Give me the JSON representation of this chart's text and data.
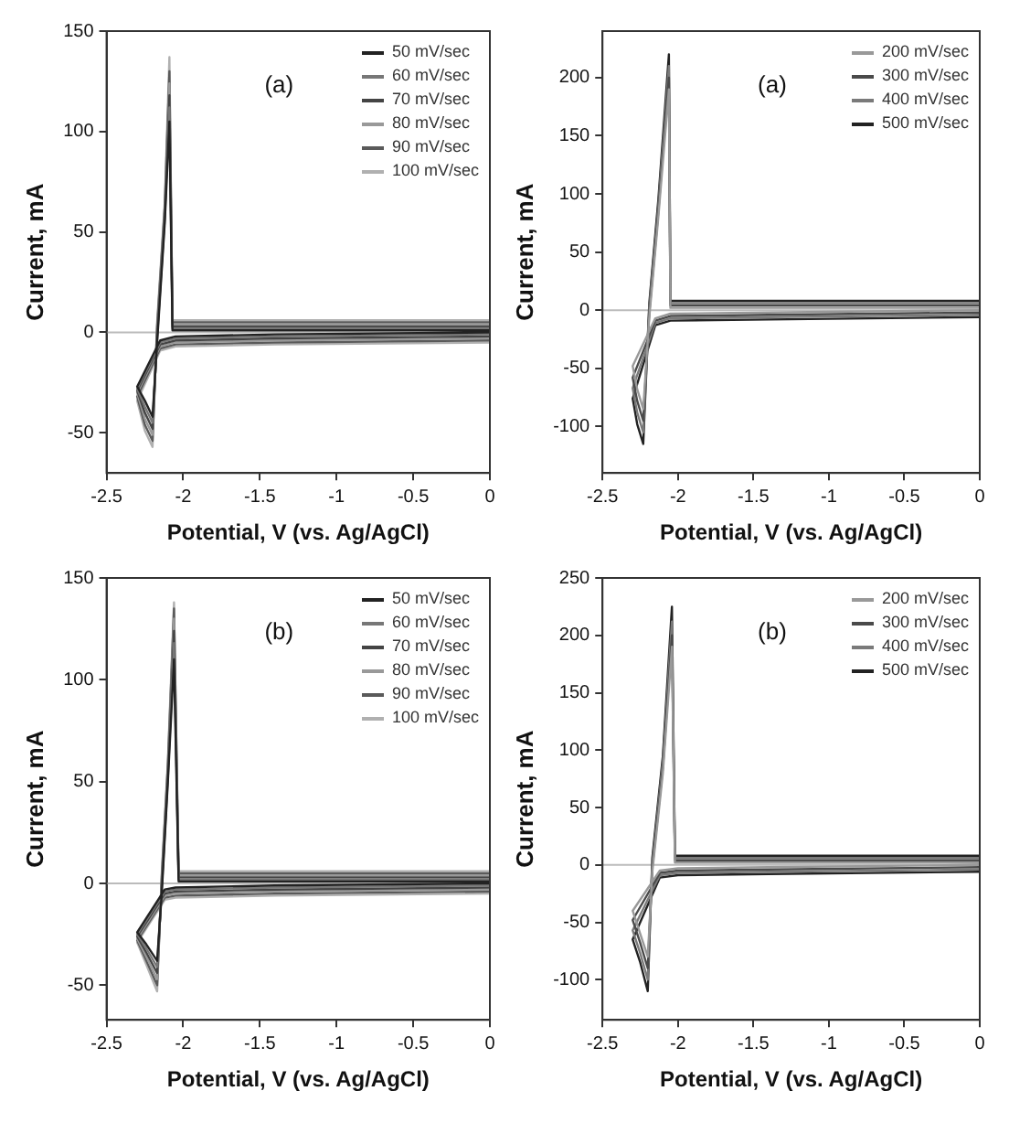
{
  "chart_data": [
    {
      "type": "line",
      "annotations": [
        "(a)"
      ],
      "xlabel": "Potential, V (vs. Ag/AgCl)",
      "ylabel": "Current, mA",
      "xlim": [
        -2.5,
        0
      ],
      "xticks": [
        -2.5,
        -2,
        -1.5,
        -1,
        -0.5,
        0
      ],
      "ylim": [
        -70,
        150
      ],
      "yticks": [
        -50,
        0,
        50,
        100,
        150
      ],
      "legend": "top right",
      "marker": "none",
      "ref_lines": [
        {
          "axis": "y",
          "value": 0,
          "color": "#bbbbbb"
        }
      ],
      "series": [
        {
          "name": "50 mV/sec",
          "color": "#222222",
          "x": [
            0,
            -1.4,
            -2.05,
            -2.15,
            -2.3,
            -2.25,
            -2.2,
            -2.17,
            -2.12,
            -2.09,
            -2.07,
            -1.5,
            0
          ],
          "values": [
            0,
            -1,
            -2,
            -4,
            -27,
            -34,
            -42,
            -5,
            55,
            105,
            1,
            1,
            1
          ]
        },
        {
          "name": "60 mV/sec",
          "color": "#777777",
          "x": [
            0,
            -1.4,
            -2.05,
            -2.15,
            -2.3,
            -2.25,
            -2.2,
            -2.17,
            -2.12,
            -2.09,
            -2.07,
            -1.5,
            0
          ],
          "values": [
            -1,
            -2,
            -3,
            -5,
            -28,
            -37,
            -45,
            -3,
            57,
            112,
            2,
            2,
            2
          ]
        },
        {
          "name": "70 mV/sec",
          "color": "#444444",
          "x": [
            0,
            -1.4,
            -2.05,
            -2.15,
            -2.3,
            -2.25,
            -2.2,
            -2.17,
            -2.12,
            -2.09,
            -2.07,
            -1.5,
            0
          ],
          "values": [
            -2,
            -3,
            -4,
            -6,
            -29,
            -40,
            -48,
            -1,
            59,
            118,
            3,
            3,
            3
          ]
        },
        {
          "name": "80 mV/sec",
          "color": "#999999",
          "x": [
            0,
            -1.4,
            -2.05,
            -2.15,
            -2.3,
            -2.25,
            -2.2,
            -2.17,
            -2.12,
            -2.09,
            -2.07,
            -1.5,
            0
          ],
          "values": [
            -3,
            -4,
            -5,
            -7,
            -30,
            -43,
            -51,
            1,
            61,
            124,
            4,
            4,
            4
          ]
        },
        {
          "name": "90 mV/sec",
          "color": "#5a5a5a",
          "x": [
            0,
            -1.4,
            -2.05,
            -2.15,
            -2.3,
            -2.25,
            -2.2,
            -2.17,
            -2.12,
            -2.09,
            -2.07,
            -1.5,
            0
          ],
          "values": [
            -4,
            -5,
            -6,
            -8,
            -32,
            -46,
            -54,
            3,
            63,
            130,
            5,
            5,
            5
          ]
        },
        {
          "name": "100 mV/sec",
          "color": "#b0b0b0",
          "x": [
            0,
            -1.4,
            -2.05,
            -2.15,
            -2.3,
            -2.25,
            -2.2,
            -2.17,
            -2.12,
            -2.09,
            -2.07,
            -1.5,
            0
          ],
          "values": [
            -5,
            -6,
            -7,
            -9,
            -34,
            -49,
            -57,
            5,
            65,
            137,
            6,
            6,
            6
          ]
        }
      ]
    },
    {
      "type": "line",
      "annotations": [
        "(a)"
      ],
      "xlabel": "Potential, V (vs. Ag/AgCl)",
      "ylabel": "Current, mA",
      "xlim": [
        -2.5,
        0
      ],
      "xticks": [
        -2.5,
        -2,
        -1.5,
        -1,
        -0.5,
        0
      ],
      "ylim": [
        -140,
        240
      ],
      "yticks": [
        -100,
        -50,
        0,
        50,
        100,
        150,
        200
      ],
      "legend": "top right",
      "marker": "none",
      "ref_lines": [
        {
          "axis": "y",
          "value": 0,
          "color": "#bbbbbb"
        }
      ],
      "series": [
        {
          "name": "200 mV/sec",
          "color": "#999999",
          "x": [
            0,
            -1.4,
            -2.05,
            -2.15,
            -2.3,
            -2.27,
            -2.23,
            -2.19,
            -2.13,
            -2.06,
            -2.05,
            -1.5,
            0
          ],
          "values": [
            0,
            -2,
            -3,
            -7,
            -48,
            -68,
            -85,
            -6,
            80,
            190,
            2,
            2,
            2
          ]
        },
        {
          "name": "300 mV/sec",
          "color": "#4a4a4a",
          "x": [
            0,
            -1.4,
            -2.05,
            -2.15,
            -2.3,
            -2.27,
            -2.23,
            -2.19,
            -2.13,
            -2.06,
            -2.05,
            -1.5,
            0
          ],
          "values": [
            -2,
            -4,
            -5,
            -9,
            -58,
            -78,
            -95,
            -2,
            85,
            200,
            4,
            4,
            4
          ]
        },
        {
          "name": "400 mV/sec",
          "color": "#7a7a7a",
          "x": [
            0,
            -1.4,
            -2.05,
            -2.15,
            -2.3,
            -2.27,
            -2.23,
            -2.19,
            -2.13,
            -2.06,
            -2.05,
            -1.5,
            0
          ],
          "values": [
            -4,
            -6,
            -7,
            -11,
            -67,
            -88,
            -105,
            2,
            90,
            210,
            6,
            6,
            6
          ]
        },
        {
          "name": "500 mV/sec",
          "color": "#222222",
          "x": [
            0,
            -1.4,
            -2.05,
            -2.15,
            -2.3,
            -2.27,
            -2.23,
            -2.19,
            -2.13,
            -2.06,
            -2.05,
            -1.5,
            0
          ],
          "values": [
            -6,
            -8,
            -9,
            -13,
            -76,
            -98,
            -115,
            6,
            95,
            220,
            8,
            8,
            8
          ]
        }
      ]
    },
    {
      "type": "line",
      "annotations": [
        "(b)"
      ],
      "xlabel": "Potential, V (vs. Ag/AgCl)",
      "ylabel": "Current, mA",
      "xlim": [
        -2.5,
        0
      ],
      "xticks": [
        -2.5,
        -2,
        -1.5,
        -1,
        -0.5,
        0
      ],
      "ylim": [
        -67,
        150
      ],
      "yticks": [
        -50,
        0,
        50,
        100,
        150
      ],
      "legend": "top right",
      "marker": "none",
      "ref_lines": [
        {
          "axis": "y",
          "value": 0,
          "color": "#bbbbbb"
        }
      ],
      "series": [
        {
          "name": "50 mV/sec",
          "color": "#222222",
          "x": [
            0,
            -1.4,
            -2.05,
            -2.12,
            -2.3,
            -2.24,
            -2.17,
            -2.14,
            -2.1,
            -2.06,
            -2.03,
            -1.5,
            0
          ],
          "values": [
            0,
            -1,
            -2,
            -3,
            -24,
            -30,
            -38,
            -5,
            50,
            110,
            1,
            1,
            1
          ]
        },
        {
          "name": "60 mV/sec",
          "color": "#777777",
          "x": [
            0,
            -1.4,
            -2.05,
            -2.12,
            -2.3,
            -2.24,
            -2.17,
            -2.14,
            -2.1,
            -2.06,
            -2.03,
            -1.5,
            0
          ],
          "values": [
            -1,
            -2,
            -3,
            -4,
            -25,
            -32,
            -41,
            -3,
            52,
            118,
            2,
            2,
            2
          ]
        },
        {
          "name": "70 mV/sec",
          "color": "#444444",
          "x": [
            0,
            -1.4,
            -2.05,
            -2.12,
            -2.3,
            -2.24,
            -2.17,
            -2.14,
            -2.1,
            -2.06,
            -2.03,
            -1.5,
            0
          ],
          "values": [
            -2,
            -3,
            -4,
            -5,
            -26,
            -34,
            -44,
            -1,
            54,
            124,
            3,
            3,
            3
          ]
        },
        {
          "name": "80 mV/sec",
          "color": "#999999",
          "x": [
            0,
            -1.4,
            -2.05,
            -2.12,
            -2.3,
            -2.24,
            -2.17,
            -2.14,
            -2.1,
            -2.06,
            -2.03,
            -1.5,
            0
          ],
          "values": [
            -3,
            -4,
            -5,
            -6,
            -27,
            -36,
            -47,
            1,
            56,
            130,
            4,
            4,
            4
          ]
        },
        {
          "name": "90 mV/sec",
          "color": "#5a5a5a",
          "x": [
            0,
            -1.4,
            -2.05,
            -2.12,
            -2.3,
            -2.24,
            -2.17,
            -2.14,
            -2.1,
            -2.06,
            -2.03,
            -1.5,
            0
          ],
          "values": [
            -4,
            -5,
            -6,
            -7,
            -28,
            -38,
            -50,
            3,
            58,
            135,
            5,
            5,
            5
          ]
        },
        {
          "name": "100 mV/sec",
          "color": "#b0b0b0",
          "x": [
            0,
            -1.4,
            -2.05,
            -2.12,
            -2.3,
            -2.24,
            -2.17,
            -2.14,
            -2.1,
            -2.06,
            -2.03,
            -1.5,
            0
          ],
          "values": [
            -5,
            -6,
            -7,
            -8,
            -29,
            -40,
            -53,
            5,
            60,
            138,
            6,
            6,
            6
          ]
        }
      ]
    },
    {
      "type": "line",
      "annotations": [
        "(b)"
      ],
      "xlabel": "Potential, V (vs. Ag/AgCl)",
      "ylabel": "Current, mA",
      "xlim": [
        -2.5,
        0
      ],
      "xticks": [
        -2.5,
        -2,
        -1.5,
        -1,
        -0.5,
        0
      ],
      "ylim": [
        -135,
        250
      ],
      "yticks": [
        -100,
        -50,
        0,
        50,
        100,
        150,
        200,
        250
      ],
      "legend": "top right",
      "marker": "none",
      "ref_lines": [
        {
          "axis": "y",
          "value": 0,
          "color": "#bbbbbb"
        }
      ],
      "series": [
        {
          "name": "200 mV/sec",
          "color": "#999999",
          "x": [
            0,
            -1.4,
            -2.0,
            -2.12,
            -2.3,
            -2.25,
            -2.2,
            -2.17,
            -2.1,
            -2.04,
            -2.02,
            -1.5,
            0
          ],
          "values": [
            0,
            -2,
            -3,
            -5,
            -40,
            -60,
            -80,
            -6,
            80,
            190,
            2,
            2,
            2
          ]
        },
        {
          "name": "300 mV/sec",
          "color": "#4a4a4a",
          "x": [
            0,
            -1.4,
            -2.0,
            -2.12,
            -2.3,
            -2.25,
            -2.2,
            -2.17,
            -2.1,
            -2.04,
            -2.02,
            -1.5,
            0
          ],
          "values": [
            -2,
            -4,
            -5,
            -7,
            -48,
            -68,
            -90,
            -2,
            85,
            200,
            4,
            4,
            4
          ]
        },
        {
          "name": "400 mV/sec",
          "color": "#7a7a7a",
          "x": [
            0,
            -1.4,
            -2.0,
            -2.12,
            -2.3,
            -2.25,
            -2.2,
            -2.17,
            -2.1,
            -2.04,
            -2.02,
            -1.5,
            0
          ],
          "values": [
            -4,
            -6,
            -7,
            -9,
            -57,
            -77,
            -100,
            2,
            90,
            212,
            6,
            6,
            6
          ]
        },
        {
          "name": "500 mV/sec",
          "color": "#222222",
          "x": [
            0,
            -1.4,
            -2.0,
            -2.12,
            -2.3,
            -2.25,
            -2.2,
            -2.17,
            -2.1,
            -2.04,
            -2.02,
            -1.5,
            0
          ],
          "values": [
            -6,
            -8,
            -9,
            -11,
            -65,
            -85,
            -110,
            6,
            95,
            225,
            8,
            8,
            8
          ]
        }
      ]
    }
  ]
}
